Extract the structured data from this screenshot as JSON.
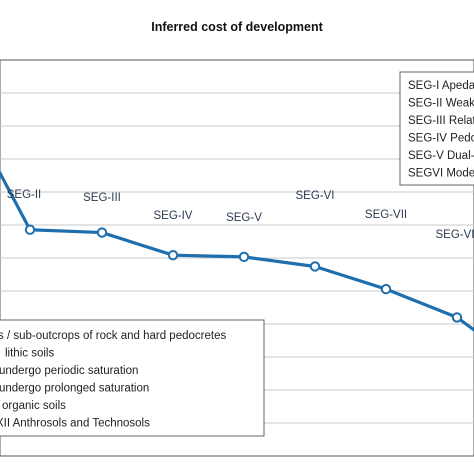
{
  "chart_data": {
    "type": "line",
    "title": "Inferred cost of development",
    "xlabel": "",
    "ylabel": "",
    "grid": true,
    "line_color": "#1f6fae",
    "categories": [
      "",
      "SEG-II",
      "SEG-III",
      "SEG-IV",
      "SEG-V",
      "SEG-VI",
      "SEG-VII",
      "SEG-VI",
      ""
    ],
    "series": [
      {
        "values": [
          8.2,
          7.0,
          6.95,
          6.55,
          6.52,
          6.35,
          5.95,
          5.45,
          5.15
        ]
      }
    ],
    "ylim": [
      3,
      10
    ],
    "legend_upper": [
      "SEG-I Apeda",
      "SEG-II Weak",
      "SEG-III Relat",
      "SEG-IV Pedoc",
      "SEG-V Dual-",
      "SEGVI Mode"
    ],
    "legend_lower": [
      "s / sub-outcrops of rock and hard pedocretes",
      "lithic soils",
      "undergo periodic saturation",
      "undergo prolonged saturation",
      "organic soils",
      "XII Anthrosols and Technosols"
    ]
  }
}
